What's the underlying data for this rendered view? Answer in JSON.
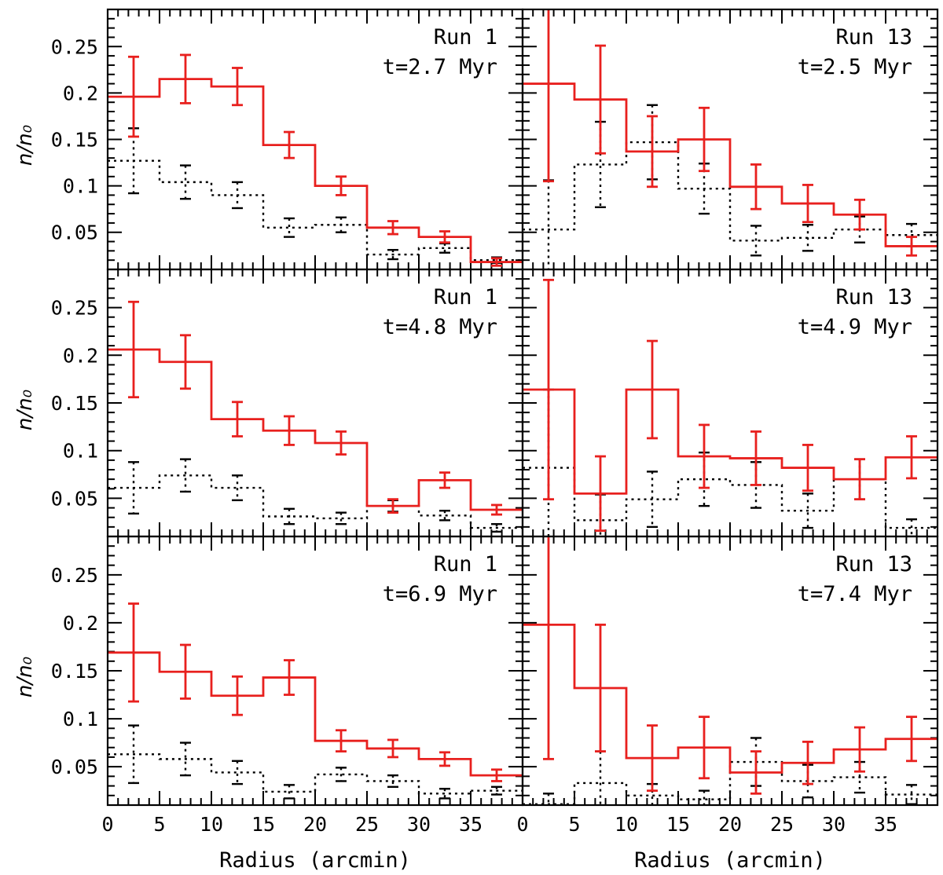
{
  "figure": {
    "x_axis_label": "Radius (arcmin)",
    "y_axis_label": "n/n₀"
  },
  "chart_data": [
    {
      "type": "histogram-step",
      "run": "Run 1",
      "time": "t=2.7 Myr",
      "xlim": [
        0,
        40
      ],
      "ylim": [
        0.01,
        0.29
      ],
      "xticks": [
        0,
        5,
        10,
        15,
        20,
        25,
        30,
        35
      ],
      "yticks": [
        0.05,
        0.1,
        0.15,
        0.2,
        0.25
      ],
      "bin_edges": [
        0,
        5,
        10,
        15,
        20,
        25,
        30,
        35,
        40
      ],
      "series": [
        {
          "style": "solid",
          "color": "#e8201e",
          "values": [
            0.196,
            0.215,
            0.207,
            0.144,
            0.1,
            0.055,
            0.045,
            0.018
          ],
          "errors": [
            0.043,
            0.026,
            0.02,
            0.014,
            0.01,
            0.007,
            0.006,
            0.004
          ]
        },
        {
          "style": "dotted",
          "color": "#000000",
          "values": [
            0.127,
            0.104,
            0.09,
            0.055,
            0.058,
            0.026,
            0.033,
            0.02
          ],
          "errors": [
            0.035,
            0.018,
            0.014,
            0.01,
            0.008,
            0.005,
            0.005,
            0.003
          ]
        }
      ]
    },
    {
      "type": "histogram-step",
      "run": "Run 13",
      "time": "t=2.5 Myr",
      "xlim": [
        0,
        40
      ],
      "ylim": [
        0.01,
        0.29
      ],
      "xticks": [
        0,
        5,
        10,
        15,
        20,
        25,
        30,
        35
      ],
      "yticks": [
        0.05,
        0.1,
        0.15,
        0.2,
        0.25
      ],
      "bin_edges": [
        0,
        5,
        10,
        15,
        20,
        25,
        30,
        35,
        40
      ],
      "series": [
        {
          "style": "solid",
          "color": "#e8201e",
          "values": [
            0.21,
            0.193,
            0.137,
            0.15,
            0.099,
            0.081,
            0.069,
            0.035
          ],
          "errors": [
            0.105,
            0.058,
            0.038,
            0.034,
            0.024,
            0.02,
            0.016,
            0.01
          ]
        },
        {
          "style": "dotted",
          "color": "#000000",
          "values": [
            0.053,
            0.123,
            0.147,
            0.097,
            0.041,
            0.044,
            0.053,
            0.047
          ],
          "errors": [
            0.053,
            0.046,
            0.04,
            0.027,
            0.016,
            0.014,
            0.014,
            0.012
          ]
        }
      ]
    },
    {
      "type": "histogram-step",
      "run": "Run 1",
      "time": "t=4.8 Myr",
      "xlim": [
        0,
        40
      ],
      "ylim": [
        0.01,
        0.29
      ],
      "xticks": [
        0,
        5,
        10,
        15,
        20,
        25,
        30,
        35
      ],
      "yticks": [
        0.05,
        0.1,
        0.15,
        0.2,
        0.25
      ],
      "bin_edges": [
        0,
        5,
        10,
        15,
        20,
        25,
        30,
        35,
        40
      ],
      "series": [
        {
          "style": "solid",
          "color": "#e8201e",
          "values": [
            0.206,
            0.193,
            0.133,
            0.121,
            0.108,
            0.042,
            0.069,
            0.038
          ],
          "errors": [
            0.05,
            0.028,
            0.018,
            0.015,
            0.012,
            0.007,
            0.008,
            0.005
          ]
        },
        {
          "style": "dotted",
          "color": "#000000",
          "values": [
            0.061,
            0.074,
            0.061,
            0.031,
            0.029,
            0.042,
            0.032,
            0.019
          ],
          "errors": [
            0.027,
            0.017,
            0.013,
            0.008,
            0.006,
            0.006,
            0.005,
            0.004
          ]
        }
      ]
    },
    {
      "type": "histogram-step",
      "run": "Run 13",
      "time": "t=4.9 Myr",
      "xlim": [
        0,
        40
      ],
      "ylim": [
        0.01,
        0.29
      ],
      "xticks": [
        0,
        5,
        10,
        15,
        20,
        25,
        30,
        35
      ],
      "yticks": [
        0.05,
        0.1,
        0.15,
        0.2,
        0.25
      ],
      "bin_edges": [
        0,
        5,
        10,
        15,
        20,
        25,
        30,
        35,
        40
      ],
      "series": [
        {
          "style": "solid",
          "color": "#e8201e",
          "values": [
            0.164,
            0.055,
            0.164,
            0.094,
            0.092,
            0.082,
            0.07,
            0.093
          ],
          "errors": [
            0.115,
            0.039,
            0.051,
            0.033,
            0.028,
            0.024,
            0.021,
            0.022
          ]
        },
        {
          "style": "dotted",
          "color": "#000000",
          "values": [
            0.082,
            0.027,
            0.049,
            0.07,
            0.064,
            0.037,
            0.07,
            0.019
          ],
          "errors": [
            0.082,
            0.027,
            0.029,
            0.028,
            0.024,
            0.018,
            0.021,
            0.009
          ]
        }
      ]
    },
    {
      "type": "histogram-step",
      "run": "Run 1",
      "time": "t=6.9 Myr",
      "xlim": [
        0,
        40
      ],
      "ylim": [
        0.01,
        0.29
      ],
      "xticks": [
        0,
        5,
        10,
        15,
        20,
        25,
        30,
        35
      ],
      "yticks": [
        0.05,
        0.1,
        0.15,
        0.2,
        0.25
      ],
      "bin_edges": [
        0,
        5,
        10,
        15,
        20,
        25,
        30,
        35,
        40
      ],
      "series": [
        {
          "style": "solid",
          "color": "#e8201e",
          "values": [
            0.169,
            0.149,
            0.124,
            0.143,
            0.077,
            0.069,
            0.058,
            0.041
          ],
          "errors": [
            0.051,
            0.028,
            0.02,
            0.018,
            0.011,
            0.009,
            0.007,
            0.006
          ]
        },
        {
          "style": "dotted",
          "color": "#000000",
          "values": [
            0.063,
            0.058,
            0.044,
            0.024,
            0.042,
            0.035,
            0.022,
            0.025
          ],
          "errors": [
            0.03,
            0.017,
            0.012,
            0.007,
            0.007,
            0.006,
            0.005,
            0.004
          ]
        }
      ]
    },
    {
      "type": "histogram-step",
      "run": "Run 13",
      "time": "t=7.4 Myr",
      "xlim": [
        0,
        40
      ],
      "ylim": [
        0.01,
        0.29
      ],
      "xticks": [
        0,
        5,
        10,
        15,
        20,
        25,
        30,
        35
      ],
      "yticks": [
        0.05,
        0.1,
        0.15,
        0.2,
        0.25
      ],
      "bin_edges": [
        0,
        5,
        10,
        15,
        20,
        25,
        30,
        35,
        40
      ],
      "series": [
        {
          "style": "solid",
          "color": "#e8201e",
          "values": [
            0.198,
            0.132,
            0.059,
            0.07,
            0.044,
            0.054,
            0.068,
            0.079
          ],
          "errors": [
            0.14,
            0.066,
            0.034,
            0.032,
            0.022,
            0.022,
            0.023,
            0.023
          ]
        },
        {
          "style": "dotted",
          "color": "#000000",
          "values": [
            0.011,
            0.033,
            0.02,
            0.016,
            0.055,
            0.035,
            0.039,
            0.021
          ],
          "errors": [
            0.011,
            0.033,
            0.012,
            0.009,
            0.025,
            0.017,
            0.016,
            0.01
          ]
        }
      ]
    }
  ]
}
